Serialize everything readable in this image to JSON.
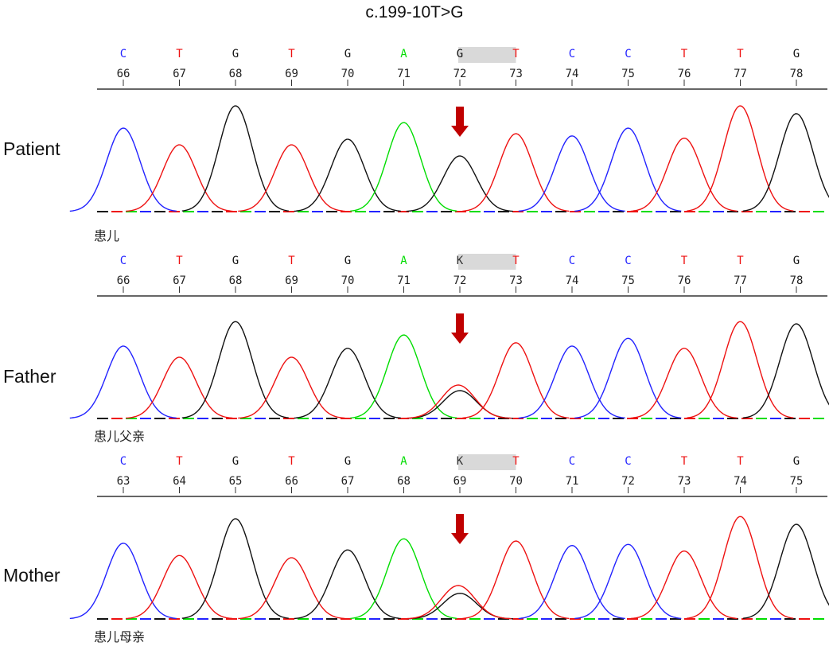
{
  "title": "c.199-10T>G",
  "colors": {
    "A": "#00dd00",
    "C": "#2222ff",
    "G": "#111111",
    "T": "#ee1111",
    "K": "#333333",
    "arrow": "#c00000",
    "highlight": "#d9d9d9"
  },
  "panels": [
    {
      "label": "Patient",
      "sublabel": "患儿",
      "bases": [
        "C",
        "T",
        "G",
        "T",
        "G",
        "A",
        "G",
        "T",
        "C",
        "C",
        "T",
        "T",
        "G"
      ],
      "positions": [
        "66",
        "67",
        "68",
        "69",
        "70",
        "71",
        "72",
        "73",
        "74",
        "75",
        "76",
        "77",
        "78"
      ],
      "highlight_from_base": 6,
      "peaks": [
        {
          "base": "C",
          "h": 0.75
        },
        {
          "base": "T",
          "h": 0.6
        },
        {
          "base": "G",
          "h": 0.95
        },
        {
          "base": "T",
          "h": 0.6
        },
        {
          "base": "G",
          "h": 0.65
        },
        {
          "base": "A",
          "h": 0.8
        },
        {
          "base": "G",
          "h": 0.5
        },
        {
          "base": "T",
          "h": 0.7
        },
        {
          "base": "C",
          "h": 0.68
        },
        {
          "base": "C",
          "h": 0.75
        },
        {
          "base": "T",
          "h": 0.66
        },
        {
          "base": "T",
          "h": 0.95
        },
        {
          "base": "G",
          "h": 0.88
        }
      ],
      "secondary_peak": null
    },
    {
      "label": "Father",
      "sublabel": "患儿父亲",
      "bases": [
        "C",
        "T",
        "G",
        "T",
        "G",
        "A",
        "K",
        "T",
        "C",
        "C",
        "T",
        "T",
        "G"
      ],
      "positions": [
        "66",
        "67",
        "68",
        "69",
        "70",
        "71",
        "72",
        "73",
        "74",
        "75",
        "76",
        "77",
        "78"
      ],
      "highlight_from_base": 6,
      "peaks": [
        {
          "base": "C",
          "h": 0.65
        },
        {
          "base": "T",
          "h": 0.55
        },
        {
          "base": "G",
          "h": 0.87
        },
        {
          "base": "T",
          "h": 0.55
        },
        {
          "base": "G",
          "h": 0.63
        },
        {
          "base": "A",
          "h": 0.75
        },
        {
          "base": "G",
          "h": 0.25
        },
        {
          "base": "T",
          "h": 0.68
        },
        {
          "base": "C",
          "h": 0.65
        },
        {
          "base": "C",
          "h": 0.72
        },
        {
          "base": "T",
          "h": 0.63
        },
        {
          "base": "T",
          "h": 0.87
        },
        {
          "base": "G",
          "h": 0.85
        }
      ],
      "secondary_peak": {
        "base": "T",
        "h": 0.3
      }
    },
    {
      "label": "Mother",
      "sublabel": "患儿母亲",
      "bases": [
        "C",
        "T",
        "G",
        "T",
        "G",
        "A",
        "K",
        "T",
        "C",
        "C",
        "T",
        "T",
        "G"
      ],
      "positions": [
        "63",
        "64",
        "65",
        "66",
        "67",
        "68",
        "69",
        "70",
        "71",
        "72",
        "73",
        "74",
        "75"
      ],
      "highlight_from_base": 6,
      "peaks": [
        {
          "base": "C",
          "h": 0.68
        },
        {
          "base": "T",
          "h": 0.57
        },
        {
          "base": "G",
          "h": 0.9
        },
        {
          "base": "T",
          "h": 0.55
        },
        {
          "base": "G",
          "h": 0.62
        },
        {
          "base": "A",
          "h": 0.72
        },
        {
          "base": "G",
          "h": 0.23
        },
        {
          "base": "T",
          "h": 0.7
        },
        {
          "base": "C",
          "h": 0.66
        },
        {
          "base": "C",
          "h": 0.67
        },
        {
          "base": "T",
          "h": 0.61
        },
        {
          "base": "T",
          "h": 0.92
        },
        {
          "base": "G",
          "h": 0.85
        }
      ],
      "secondary_peak": {
        "base": "T",
        "h": 0.3
      }
    }
  ]
}
